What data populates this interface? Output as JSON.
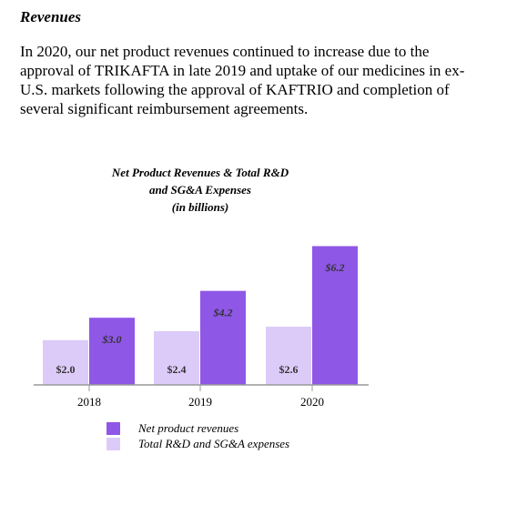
{
  "heading": "Revenues",
  "body": {
    "lines": [
      "In 2020, our net product revenues continued to increase due to the",
      "approval of TRIKAFTA in late 2019 and uptake of our medicines in ex-",
      "U.S. markets following the approval of KAFTRIO and completion of",
      "several significant reimbursement agreements."
    ]
  },
  "chart_data": {
    "type": "bar",
    "title": [
      "Net Product Revenues & Total R&D",
      "and SG&A Expenses"
    ],
    "subtitle": "(in billions)",
    "categories": [
      "2018",
      "2019",
      "2020"
    ],
    "series": [
      {
        "name": "Net product revenues",
        "color": "#8f57e6",
        "values": [
          3.0,
          4.2,
          6.2
        ],
        "value_labels": [
          "$3.0",
          "$4.2",
          "$6.2"
        ]
      },
      {
        "name": "Total R&D and SG&A expenses",
        "color": "#dccbf8",
        "values": [
          2.0,
          2.4,
          2.6
        ],
        "value_labels": [
          "$2.0",
          "$2.4",
          "$2.6"
        ]
      }
    ]
  }
}
